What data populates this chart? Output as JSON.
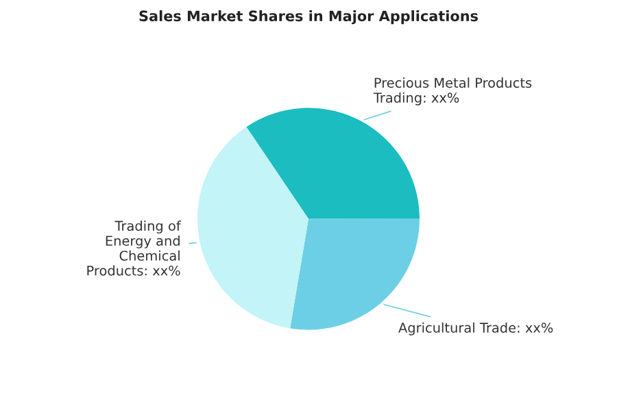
{
  "chart_data": {
    "type": "pie",
    "title": "Sales Market Shares in Major Applications",
    "categories": [
      "Precious Metal Products\nTrading",
      "Agricultural Trade",
      "Trading of\nEnergy and\nChemical\nProducts"
    ],
    "values": [
      34.4,
      27.7,
      37.9
    ],
    "colors": [
      "#1bbdc1",
      "#6dcfe6",
      "#c2f4f8"
    ],
    "value_labels": [
      "xx%",
      "xx%",
      "xx%"
    ]
  }
}
